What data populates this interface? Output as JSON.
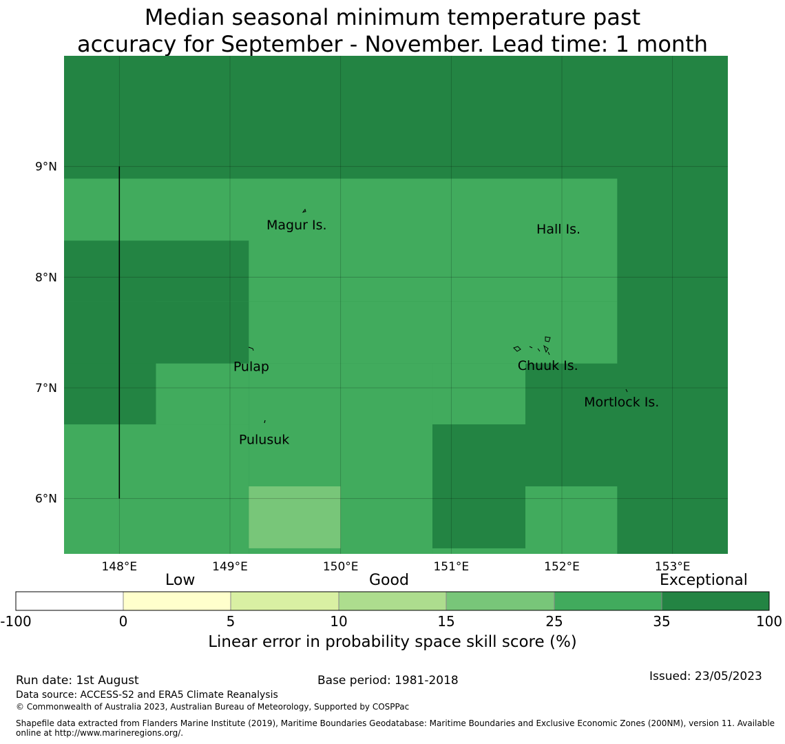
{
  "title": {
    "line1": "Median seasonal minimum temperature past",
    "line2": "accuracy for September - November. Lead time: 1 month"
  },
  "map": {
    "lon_range": [
      147.5,
      153.5
    ],
    "lat_range": [
      5.5,
      10.0
    ],
    "lon_ticks": [
      "148°E",
      "149°E",
      "150°E",
      "151°E",
      "152°E",
      "153°E"
    ],
    "lat_ticks": [
      "9°N",
      "8°N",
      "7°N",
      "6°N"
    ],
    "colors": {
      "exceptional": "#238443",
      "good_high": "#41ab5d",
      "good_mid": "#78c679"
    },
    "grid_cells": [
      {
        "lon": [
          147.5,
          153.5
        ],
        "lat": [
          5.5,
          10.0
        ],
        "cls": "exceptional"
      },
      {
        "lon": [
          147.5,
          152.5
        ],
        "lat": [
          7.78,
          8.89
        ],
        "cls": "good_high"
      },
      {
        "lon": [
          149.17,
          152.5
        ],
        "lat": [
          7.22,
          7.78
        ],
        "cls": "good_high"
      },
      {
        "lon": [
          149.17,
          150.83
        ],
        "lat": [
          6.11,
          7.22
        ],
        "cls": "good_high"
      },
      {
        "lon": [
          148.33,
          149.17
        ],
        "lat": [
          6.67,
          7.22
        ],
        "cls": "good_high"
      },
      {
        "lon": [
          150.83,
          151.67
        ],
        "lat": [
          6.67,
          7.22
        ],
        "cls": "good_high"
      },
      {
        "lon": [
          147.5,
          149.17
        ],
        "lat": [
          5.5,
          6.67
        ],
        "cls": "good_high"
      },
      {
        "lon": [
          150.0,
          150.83
        ],
        "lat": [
          5.5,
          6.11
        ],
        "cls": "good_high"
      },
      {
        "lon": [
          151.67,
          152.5
        ],
        "lat": [
          5.5,
          6.11
        ],
        "cls": "good_high"
      },
      {
        "lon": [
          149.17,
          150.0
        ],
        "lat": [
          5.55,
          6.11
        ],
        "cls": "good_mid"
      },
      {
        "lon": [
          149.17,
          150.0
        ],
        "lat": [
          5.5,
          5.55
        ],
        "cls": "good_high"
      },
      {
        "lon": [
          147.5,
          149.17
        ],
        "lat": [
          7.78,
          8.33
        ],
        "cls": "exceptional"
      },
      {
        "lon": [
          147.5,
          148.33
        ],
        "lat": [
          7.22,
          7.78
        ],
        "cls": "exceptional"
      },
      {
        "lon": [
          147.5,
          148.33
        ],
        "lat": [
          6.67,
          7.22
        ],
        "cls": "exceptional"
      },
      {
        "lon": [
          150.83,
          151.67
        ],
        "lat": [
          5.55,
          6.67
        ],
        "cls": "exceptional"
      },
      {
        "lon": [
          150.83,
          151.67
        ],
        "lat": [
          5.5,
          5.55
        ],
        "cls": "good_high"
      }
    ],
    "boundary_line": {
      "lon": 148.0,
      "lat": [
        6.0,
        9.0
      ]
    },
    "places": [
      {
        "name": "Magur Is.",
        "lon": 149.33,
        "lat": 8.47
      },
      {
        "name": "Hall Is.",
        "lon": 151.77,
        "lat": 8.43
      },
      {
        "name": "Pulap",
        "lon": 149.03,
        "lat": 7.19
      },
      {
        "name": "Chuuk Is.",
        "lon": 151.6,
        "lat": 7.2
      },
      {
        "name": "Mortlock Is.",
        "lon": 152.2,
        "lat": 6.87
      },
      {
        "name": "Pulusuk",
        "lon": 149.08,
        "lat": 6.53
      }
    ]
  },
  "colorbar": {
    "categories": [
      "Low",
      "Good",
      "Exceptional"
    ],
    "ticks": [
      "-100",
      "0",
      "5",
      "10",
      "15",
      "25",
      "35",
      "100"
    ],
    "colors": [
      "#ffffff",
      "#ffffcc",
      "#d9f0a3",
      "#addd8e",
      "#78c679",
      "#41ab5d",
      "#238443"
    ],
    "label": "Linear error in probability space skill score (%)"
  },
  "footer": {
    "run_date": "Run date: 1st August",
    "base_period": "Base period: 1981-2018",
    "issued": "Issued: 23/05/2023",
    "data_source": "Data source: ACCESS-S2 and ERA5 Climate Reanalysis",
    "copyright": "© Commonwealth of Australia 2023, Australian Bureau of Meteorology, Supported by COSPPac",
    "shapefile_line1": "Shapefile data extracted from Flanders Marine Institute (2019), Maritime Boundaries Geodatabase: Maritime Boundaries and Exclusive Economic Zones (200NM), version 11. Available",
    "shapefile_line2": "online at http://www.marineregions.org/."
  }
}
